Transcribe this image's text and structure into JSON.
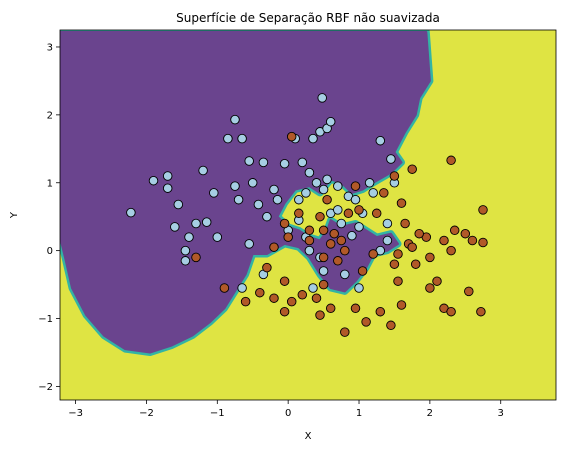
{
  "chart_data": {
    "type": "scatter",
    "title": "Superfície de Separação RBF não suavizada",
    "xlabel": "X",
    "ylabel": "Y",
    "xlim": [
      -3.22,
      3.78
    ],
    "ylim": [
      -2.2,
      3.25
    ],
    "xticks": [
      "−3",
      "−2",
      "−1",
      "0",
      "1",
      "2",
      "3"
    ],
    "yticks": [
      "−2",
      "−1",
      "0",
      "1",
      "2",
      "3"
    ],
    "xtick_values": [
      -3,
      -2,
      -1,
      0,
      1,
      2,
      3
    ],
    "ytick_values": [
      -2,
      -1,
      0,
      1,
      2,
      3
    ],
    "grid": false,
    "decision_surface": {
      "background_color": "#dfe443",
      "region_color": "#6a448e",
      "edge_color": "#33b4a4",
      "region_polygon": [
        [
          -3.22,
          3.22
        ],
        [
          -2.5,
          3.22
        ],
        [
          0.6,
          3.22
        ],
        [
          1.5,
          3.22
        ],
        [
          1.95,
          3.22
        ],
        [
          2.0,
          2.5
        ],
        [
          1.85,
          2.25
        ],
        [
          1.8,
          2.0
        ],
        [
          1.65,
          1.75
        ],
        [
          1.5,
          1.45
        ],
        [
          1.6,
          1.3
        ],
        [
          1.45,
          1.15
        ],
        [
          1.2,
          1.0
        ],
        [
          1.05,
          0.9
        ],
        [
          0.9,
          0.85
        ],
        [
          0.75,
          1.0
        ],
        [
          0.6,
          1.05
        ],
        [
          0.45,
          0.85
        ],
        [
          0.3,
          0.95
        ],
        [
          0.1,
          0.9
        ],
        [
          -0.05,
          0.7
        ],
        [
          -0.15,
          0.5
        ],
        [
          0.0,
          0.35
        ],
        [
          0.15,
          0.3
        ],
        [
          0.3,
          0.2
        ],
        [
          0.45,
          0.15
        ],
        [
          0.55,
          0.3
        ],
        [
          0.6,
          0.45
        ],
        [
          0.75,
          0.35
        ],
        [
          0.95,
          0.4
        ],
        [
          1.1,
          0.3
        ],
        [
          1.25,
          0.2
        ],
        [
          1.45,
          0.25
        ],
        [
          1.55,
          0.1
        ],
        [
          1.4,
          0.0
        ],
        [
          1.2,
          -0.05
        ],
        [
          1.1,
          -0.25
        ],
        [
          0.95,
          -0.45
        ],
        [
          0.8,
          -0.6
        ],
        [
          0.6,
          -0.55
        ],
        [
          0.45,
          -0.35
        ],
        [
          0.3,
          -0.1
        ],
        [
          0.15,
          0.05
        ],
        [
          -0.05,
          0.1
        ],
        [
          -0.3,
          -0.05
        ],
        [
          -0.5,
          -0.05
        ],
        [
          -0.6,
          -0.35
        ],
        [
          -0.75,
          -0.6
        ],
        [
          -0.9,
          -0.85
        ],
        [
          -1.1,
          -1.05
        ],
        [
          -1.35,
          -1.25
        ],
        [
          -1.65,
          -1.4
        ],
        [
          -1.95,
          -1.5
        ],
        [
          -2.3,
          -1.45
        ],
        [
          -2.6,
          -1.25
        ],
        [
          -2.85,
          -0.95
        ],
        [
          -3.05,
          -0.55
        ],
        [
          -3.15,
          -0.1
        ],
        [
          -3.22,
          0.2
        ]
      ]
    },
    "series": [
      {
        "name": "",
        "color": "#a6cee3",
        "points": [
          [
            -2.22,
            0.56
          ],
          [
            -1.9,
            1.03
          ],
          [
            -1.7,
            0.92
          ],
          [
            -1.7,
            1.1
          ],
          [
            -1.55,
            0.68
          ],
          [
            -1.4,
            0.2
          ],
          [
            -1.2,
            1.18
          ],
          [
            -1.15,
            0.42
          ],
          [
            -1.05,
            0.85
          ],
          [
            -1.0,
            0.2
          ],
          [
            -0.85,
            1.65
          ],
          [
            -0.75,
            1.93
          ],
          [
            -0.65,
            1.65
          ],
          [
            -0.75,
            0.95
          ],
          [
            -0.7,
            0.75
          ],
          [
            -0.5,
            1.0
          ],
          [
            -0.42,
            0.68
          ],
          [
            -0.55,
            1.32
          ],
          [
            -0.35,
            1.3
          ],
          [
            -0.55,
            0.1
          ],
          [
            -0.3,
            0.5
          ],
          [
            -0.2,
            0.9
          ],
          [
            -0.15,
            0.75
          ],
          [
            -0.05,
            1.28
          ],
          [
            0.1,
            1.65
          ],
          [
            0.2,
            1.3
          ],
          [
            0.3,
            1.15
          ],
          [
            0.4,
            1.0
          ],
          [
            0.35,
            1.65
          ],
          [
            0.45,
            1.75
          ],
          [
            0.55,
            1.8
          ],
          [
            0.6,
            1.9
          ],
          [
            0.48,
            2.25
          ],
          [
            0.5,
            0.9
          ],
          [
            0.7,
            0.95
          ],
          [
            0.85,
            0.8
          ],
          [
            0.95,
            0.75
          ],
          [
            1.15,
            1.0
          ],
          [
            1.3,
            1.62
          ],
          [
            1.45,
            1.35
          ],
          [
            1.5,
            1.0
          ],
          [
            1.2,
            0.85
          ],
          [
            1.4,
            0.4
          ],
          [
            1.4,
            0.15
          ],
          [
            1.3,
            0.0
          ],
          [
            0.9,
            0.22
          ],
          [
            0.8,
            -0.35
          ],
          [
            1.0,
            -0.55
          ],
          [
            0.5,
            -0.3
          ],
          [
            0.35,
            -0.55
          ],
          [
            -0.35,
            -0.35
          ],
          [
            -1.45,
            -0.15
          ],
          [
            -1.45,
            0.0
          ],
          [
            -1.6,
            0.35
          ],
          [
            -1.3,
            0.4
          ],
          [
            -0.65,
            -0.55
          ],
          [
            0.0,
            0.3
          ],
          [
            0.15,
            0.45
          ],
          [
            0.25,
            0.2
          ],
          [
            0.6,
            0.55
          ],
          [
            0.7,
            0.6
          ],
          [
            1.0,
            0.35
          ],
          [
            0.3,
            0.0
          ],
          [
            0.45,
            -0.1
          ],
          [
            0.15,
            0.75
          ],
          [
            0.55,
            1.05
          ],
          [
            1.05,
            0.55
          ],
          [
            0.25,
            0.85
          ],
          [
            0.75,
            0.4
          ]
        ]
      },
      {
        "name": "",
        "color": "#b15928",
        "points": [
          [
            -1.3,
            -0.1
          ],
          [
            -0.9,
            -0.55
          ],
          [
            -0.6,
            -0.75
          ],
          [
            -0.4,
            -0.62
          ],
          [
            -0.3,
            -0.25
          ],
          [
            -0.2,
            0.05
          ],
          [
            -0.05,
            0.4
          ],
          [
            0.0,
            0.2
          ],
          [
            -0.05,
            -0.45
          ],
          [
            0.05,
            1.68
          ],
          [
            0.15,
            0.55
          ],
          [
            0.3,
            0.3
          ],
          [
            0.45,
            0.5
          ],
          [
            0.5,
            0.3
          ],
          [
            0.55,
            0.75
          ],
          [
            0.65,
            0.25
          ],
          [
            0.75,
            0.15
          ],
          [
            0.85,
            0.55
          ],
          [
            0.95,
            0.95
          ],
          [
            1.0,
            0.6
          ],
          [
            1.25,
            0.55
          ],
          [
            1.35,
            0.85
          ],
          [
            1.5,
            1.1
          ],
          [
            1.6,
            0.7
          ],
          [
            1.65,
            0.4
          ],
          [
            1.7,
            0.1
          ],
          [
            1.8,
            -0.2
          ],
          [
            1.95,
            0.2
          ],
          [
            2.0,
            -0.1
          ],
          [
            2.1,
            -0.45
          ],
          [
            2.2,
            -0.85
          ],
          [
            2.3,
            0.0
          ],
          [
            2.35,
            0.3
          ],
          [
            2.5,
            0.25
          ],
          [
            2.55,
            -0.6
          ],
          [
            2.6,
            0.15
          ],
          [
            2.75,
            0.12
          ],
          [
            2.75,
            0.6
          ],
          [
            2.3,
            -0.9
          ],
          [
            2.72,
            -0.9
          ],
          [
            2.0,
            -0.55
          ],
          [
            1.85,
            0.25
          ],
          [
            1.55,
            -0.45
          ],
          [
            1.6,
            -0.8
          ],
          [
            1.45,
            -1.1
          ],
          [
            1.3,
            -0.9
          ],
          [
            1.1,
            -1.05
          ],
          [
            0.95,
            -0.85
          ],
          [
            0.8,
            -1.2
          ],
          [
            0.6,
            -0.85
          ],
          [
            0.5,
            -0.5
          ],
          [
            0.45,
            -0.95
          ],
          [
            0.4,
            -0.7
          ],
          [
            0.2,
            -0.65
          ],
          [
            0.05,
            -0.75
          ],
          [
            -0.05,
            -0.9
          ],
          [
            -0.2,
            -0.7
          ],
          [
            0.6,
            0.1
          ],
          [
            0.8,
            0.0
          ],
          [
            1.05,
            -0.3
          ],
          [
            1.2,
            -0.05
          ],
          [
            1.5,
            -0.2
          ],
          [
            1.75,
            0.05
          ],
          [
            2.2,
            0.15
          ],
          [
            2.3,
            1.33
          ],
          [
            1.75,
            1.2
          ],
          [
            1.55,
            -0.05
          ],
          [
            0.3,
            0.15
          ],
          [
            0.5,
            -0.1
          ],
          [
            0.7,
            -0.15
          ]
        ]
      }
    ]
  }
}
